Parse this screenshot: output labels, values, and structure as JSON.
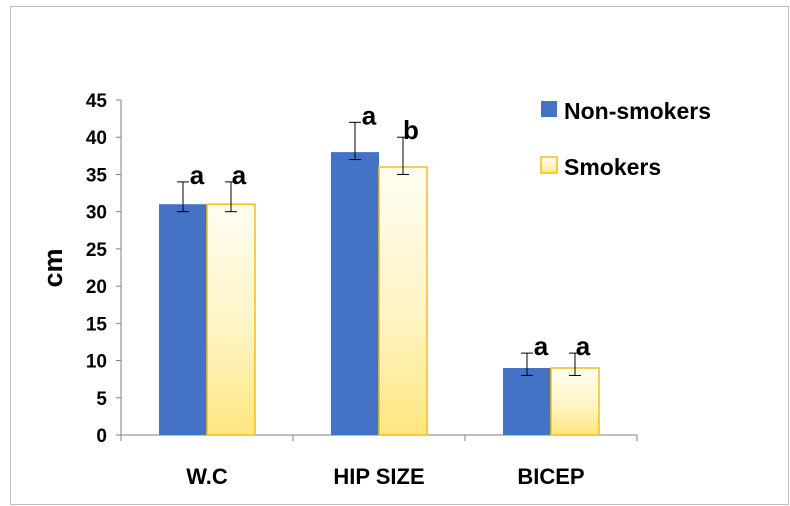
{
  "chart_data": {
    "type": "bar",
    "categories": [
      "W.C",
      "HIP SIZE",
      "BICEP"
    ],
    "series": [
      {
        "name": "Non-smokers",
        "values": [
          31,
          38,
          9
        ],
        "error": [
          [
            30,
            34
          ],
          [
            37,
            42
          ],
          [
            8,
            11
          ]
        ],
        "significance": [
          "a",
          "a",
          "a"
        ],
        "color": "#4472c4"
      },
      {
        "name": "Smokers",
        "values": [
          31,
          36,
          9
        ],
        "error": [
          [
            30,
            34
          ],
          [
            35,
            40
          ],
          [
            8,
            11
          ]
        ],
        "significance": [
          "a",
          "b",
          "a"
        ],
        "color": "#fff2b3"
      }
    ],
    "ylabel": "cm",
    "ylim": [
      0,
      45
    ],
    "yticks": [
      0,
      5,
      10,
      15,
      20,
      25,
      30,
      35,
      40,
      45
    ],
    "legend_position": "top-right",
    "grid": false
  }
}
